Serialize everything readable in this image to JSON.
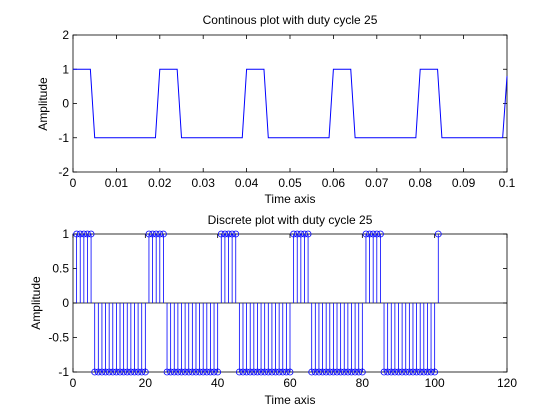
{
  "chart_data": [
    {
      "type": "line",
      "title": "Continous plot with duty cycle 25",
      "xlabel": "Time axis",
      "ylabel": "Amplitude",
      "xlim": [
        0,
        0.1
      ],
      "ylim": [
        -2,
        2
      ],
      "xticks": [
        "0",
        "0.01",
        "0.02",
        "0.03",
        "0.04",
        "0.05",
        "0.06",
        "0.07",
        "0.08",
        "0.09",
        "0.1"
      ],
      "yticks": [
        "-2",
        "-1",
        "0",
        "1",
        "2"
      ],
      "grid": false,
      "series": [
        {
          "color": "#0000ff",
          "x": [
            0,
            0.004,
            0.005,
            0.019,
            0.02,
            0.024,
            0.025,
            0.039,
            0.04,
            0.044,
            0.045,
            0.059,
            0.06,
            0.064,
            0.065,
            0.079,
            0.08,
            0.084,
            0.085,
            0.099,
            0.1
          ],
          "y": [
            1,
            1,
            -1,
            -1,
            1,
            1,
            -1,
            -1,
            1,
            1,
            -1,
            -1,
            1,
            1,
            -1,
            -1,
            1,
            1,
            -1,
            -1,
            0.8
          ]
        }
      ]
    },
    {
      "type": "stem",
      "title": "Discrete plot with duty cycle 25",
      "xlabel": "Time axis",
      "ylabel": "Amplitude",
      "xlim": [
        0,
        120
      ],
      "ylim": [
        -1,
        1
      ],
      "xticks": [
        "0",
        "20",
        "40",
        "60",
        "80",
        "100",
        "120"
      ],
      "yticks": [
        "-1",
        "-0.5",
        "0",
        "0.5",
        "1"
      ],
      "grid": false,
      "baseline": 0,
      "series": [
        {
          "color": "#0000ff",
          "marker": "circle",
          "x_start": 1,
          "values": [
            1,
            1,
            1,
            1,
            1,
            -1,
            -1,
            -1,
            -1,
            -1,
            -1,
            -1,
            -1,
            -1,
            -1,
            -1,
            -1,
            -1,
            -1,
            -1,
            1,
            1,
            1,
            1,
            1,
            -1,
            -1,
            -1,
            -1,
            -1,
            -1,
            -1,
            -1,
            -1,
            -1,
            -1,
            -1,
            -1,
            -1,
            -1,
            1,
            1,
            1,
            1,
            1,
            -1,
            -1,
            -1,
            -1,
            -1,
            -1,
            -1,
            -1,
            -1,
            -1,
            -1,
            -1,
            -1,
            -1,
            -1,
            1,
            1,
            1,
            1,
            1,
            -1,
            -1,
            -1,
            -1,
            -1,
            -1,
            -1,
            -1,
            -1,
            -1,
            -1,
            -1,
            -1,
            -1,
            -1,
            1,
            1,
            1,
            1,
            1,
            -1,
            -1,
            -1,
            -1,
            -1,
            -1,
            -1,
            -1,
            -1,
            -1,
            -1,
            -1,
            -1,
            -1,
            -1,
            1
          ]
        }
      ]
    }
  ]
}
